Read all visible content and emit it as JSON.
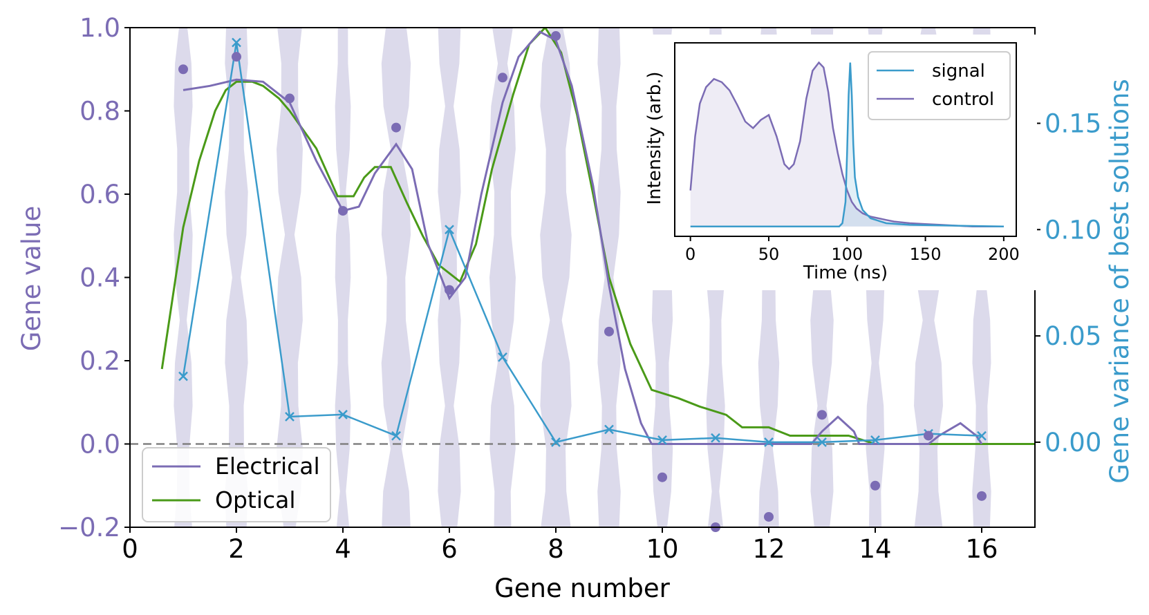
{
  "chart_data": [
    {
      "type": "line",
      "panel": "main",
      "xlabel": "Gene number",
      "ylabel": "Gene value",
      "y2label": "Gene variance of best solutions",
      "xlim": [
        0,
        17
      ],
      "ylim": [
        -0.2,
        1.0
      ],
      "y2lim": [
        -0.04,
        0.195
      ],
      "xticks": [
        0,
        2,
        4,
        6,
        8,
        10,
        12,
        14,
        16
      ],
      "yticks": [
        -0.2,
        0.0,
        0.2,
        0.4,
        0.6,
        0.8,
        1.0
      ],
      "ytick_labels": [
        "−0.2",
        "0.0",
        "0.2",
        "0.4",
        "0.6",
        "0.8",
        "1.0"
      ],
      "y2ticks": [
        0.0,
        0.05,
        0.1,
        0.15
      ],
      "y2tick_labels": [
        "0.00",
        "0.05",
        "0.10",
        "0.15"
      ],
      "hline": 0.0,
      "legend": {
        "position": "lower-left",
        "entries": [
          {
            "label": "Electrical",
            "color": "#7b6cb4"
          },
          {
            "label": "Optical",
            "color": "#4a9a18"
          }
        ]
      },
      "colors": {
        "electrical": "#7b6cb4",
        "optical": "#4a9a18",
        "variance": "#3a9bcb",
        "violin": "#d6d3e8",
        "points": "#7b6cb4",
        "dashed": "#808080"
      },
      "gene_points": {
        "x": [
          1,
          2,
          3,
          4,
          5,
          6,
          7,
          8,
          9,
          10,
          11,
          12,
          13,
          14,
          15,
          16
        ],
        "y": [
          0.9,
          0.93,
          0.83,
          0.56,
          0.76,
          0.37,
          0.88,
          0.98,
          0.27,
          -0.08,
          -0.2,
          -0.175,
          0.07,
          -0.1,
          0.02,
          -0.125
        ]
      },
      "variance": {
        "x": [
          1,
          2,
          3,
          4,
          5,
          6,
          7,
          8,
          9,
          10,
          11,
          12,
          13,
          14,
          15,
          16
        ],
        "y": [
          0.031,
          0.188,
          0.012,
          0.013,
          0.003,
          0.1,
          0.04,
          0.0,
          0.006,
          0.001,
          0.002,
          0.0,
          0.0,
          0.001,
          0.004,
          0.003
        ]
      },
      "electrical": {
        "x": [
          1.0,
          1.5,
          2.0,
          2.5,
          3.0,
          3.5,
          4.0,
          4.3,
          4.6,
          5.0,
          5.3,
          5.6,
          6.0,
          6.3,
          6.6,
          7.0,
          7.3,
          7.7,
          8.0,
          8.3,
          8.7,
          9.0,
          9.3,
          9.6,
          9.8,
          10.0,
          11.0,
          12.0,
          12.8,
          13.0,
          13.3,
          13.6,
          13.7,
          14.0,
          15.0,
          15.2,
          15.6,
          15.9,
          16.0
        ],
        "y": [
          0.85,
          0.86,
          0.875,
          0.87,
          0.82,
          0.68,
          0.56,
          0.57,
          0.65,
          0.72,
          0.66,
          0.48,
          0.35,
          0.4,
          0.6,
          0.82,
          0.93,
          0.99,
          0.97,
          0.86,
          0.62,
          0.38,
          0.18,
          0.05,
          0.0,
          0.0,
          0.0,
          0.0,
          0.0,
          0.03,
          0.065,
          0.03,
          0.0,
          0.0,
          0.0,
          0.02,
          0.05,
          0.02,
          0.0
        ]
      },
      "optical": {
        "x": [
          0.6,
          0.8,
          1.0,
          1.3,
          1.6,
          1.8,
          2.0,
          2.3,
          2.5,
          2.8,
          3.0,
          3.5,
          3.9,
          4.2,
          4.4,
          4.6,
          4.9,
          5.2,
          5.5,
          5.8,
          6.2,
          6.5,
          6.8,
          7.2,
          7.5,
          7.8,
          8.1,
          8.4,
          8.7,
          9.0,
          9.4,
          9.8,
          10.3,
          10.7,
          11.2,
          11.5,
          12.0,
          12.4,
          13.0,
          13.5,
          14.0,
          16.0,
          17.0
        ],
        "y": [
          0.18,
          0.35,
          0.52,
          0.68,
          0.8,
          0.85,
          0.87,
          0.87,
          0.86,
          0.83,
          0.8,
          0.71,
          0.595,
          0.595,
          0.64,
          0.665,
          0.665,
          0.58,
          0.5,
          0.43,
          0.39,
          0.48,
          0.66,
          0.84,
          0.96,
          1.0,
          0.94,
          0.79,
          0.6,
          0.4,
          0.24,
          0.13,
          0.11,
          0.09,
          0.07,
          0.04,
          0.04,
          0.02,
          0.02,
          0.02,
          0.0,
          0.0,
          0.0
        ]
      },
      "violins": {
        "x": [
          1,
          2,
          3,
          4,
          5,
          6,
          7,
          8,
          9,
          10,
          11,
          12,
          13,
          14,
          15,
          16
        ],
        "widths": [
          0.18,
          0.22,
          0.25,
          0.15,
          0.28,
          0.22,
          0.25,
          0.3,
          0.22,
          0.2,
          0.18,
          0.2,
          0.22,
          0.18,
          0.28,
          0.18
        ]
      }
    },
    {
      "type": "line",
      "panel": "inset",
      "xlabel": "Time (ns)",
      "ylabel": "Intensity (arb.)",
      "xlim": [
        -10,
        208
      ],
      "ylim": [
        -0.06,
        1.12
      ],
      "xticks": [
        0,
        50,
        100,
        150,
        200
      ],
      "legend": {
        "position": "top-right",
        "entries": [
          {
            "label": "signal",
            "color": "#3a9bcb"
          },
          {
            "label": "control",
            "color": "#7b6cb4"
          }
        ]
      },
      "signal": {
        "x": [
          0,
          95,
          97,
          99,
          100,
          101,
          102,
          103,
          104,
          105,
          107,
          110,
          115,
          125,
          140,
          200
        ],
        "y": [
          0,
          0,
          0.02,
          0.15,
          0.45,
          0.8,
          1.0,
          0.8,
          0.5,
          0.3,
          0.18,
          0.1,
          0.05,
          0.02,
          0.01,
          0.0
        ]
      },
      "control": {
        "x": [
          0,
          3,
          6,
          10,
          15,
          20,
          25,
          30,
          35,
          40,
          45,
          50,
          55,
          60,
          63,
          66,
          70,
          74,
          78,
          82,
          85,
          88,
          91,
          94,
          97,
          100,
          103,
          106,
          110,
          115,
          120,
          125,
          130,
          140,
          150,
          160,
          180,
          200
        ],
        "y": [
          0.22,
          0.55,
          0.75,
          0.85,
          0.9,
          0.88,
          0.83,
          0.74,
          0.64,
          0.6,
          0.65,
          0.68,
          0.55,
          0.38,
          0.35,
          0.38,
          0.52,
          0.78,
          0.95,
          1.0,
          0.97,
          0.82,
          0.6,
          0.45,
          0.32,
          0.22,
          0.15,
          0.11,
          0.08,
          0.06,
          0.05,
          0.04,
          0.03,
          0.02,
          0.015,
          0.01,
          0.0,
          0.0
        ]
      }
    }
  ]
}
